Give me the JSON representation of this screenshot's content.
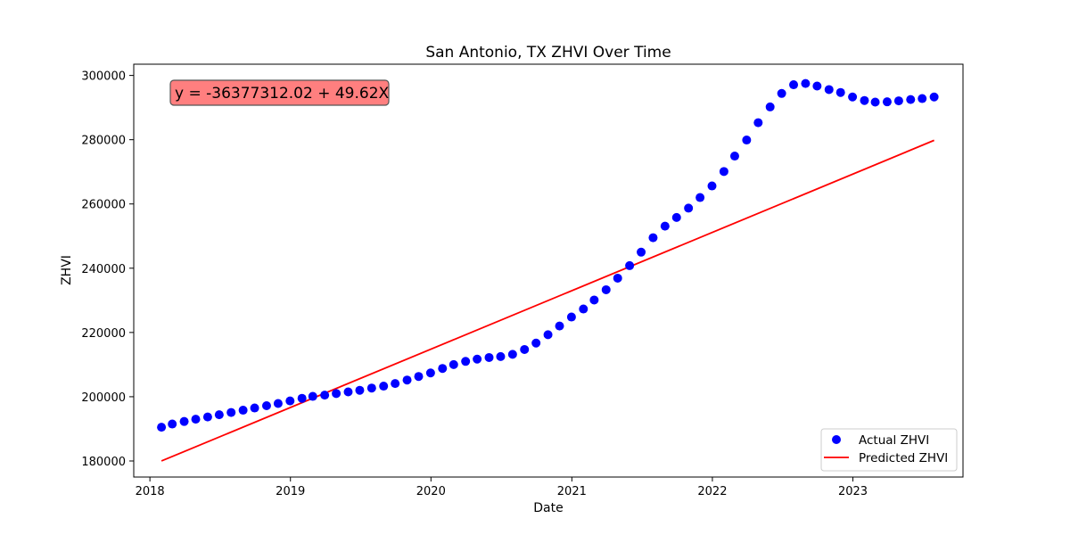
{
  "chart_data": {
    "type": "scatter",
    "title": "San Antonio, TX ZHVI Over Time",
    "xlabel": "Date",
    "ylabel": "ZHVI",
    "xlim": [
      "2017-11-20",
      "2023-10-14"
    ],
    "ylim": [
      175000,
      303500
    ],
    "x_ticks": [
      "2018",
      "2019",
      "2020",
      "2021",
      "2022",
      "2023"
    ],
    "y_ticks": [
      180000,
      200000,
      220000,
      240000,
      260000,
      280000,
      300000
    ],
    "grid": false,
    "legend_position": "lower right",
    "annotation": "y = -36377312.02 + 49.62X",
    "series": [
      {
        "name": "Actual ZHVI",
        "kind": "scatter",
        "color": "#0000ff",
        "points": [
          [
            "2018-01-31",
            190500
          ],
          [
            "2018-02-28",
            191500
          ],
          [
            "2018-03-31",
            192300
          ],
          [
            "2018-04-30",
            193000
          ],
          [
            "2018-05-31",
            193700
          ],
          [
            "2018-06-30",
            194400
          ],
          [
            "2018-07-31",
            195100
          ],
          [
            "2018-08-31",
            195800
          ],
          [
            "2018-09-30",
            196500
          ],
          [
            "2018-10-31",
            197200
          ],
          [
            "2018-11-30",
            197900
          ],
          [
            "2018-12-31",
            198700
          ],
          [
            "2019-01-31",
            199500
          ],
          [
            "2019-02-28",
            200100
          ],
          [
            "2019-03-31",
            200500
          ],
          [
            "2019-04-30",
            201000
          ],
          [
            "2019-05-31",
            201500
          ],
          [
            "2019-06-30",
            202000
          ],
          [
            "2019-07-31",
            202700
          ],
          [
            "2019-08-31",
            203300
          ],
          [
            "2019-09-30",
            204100
          ],
          [
            "2019-10-31",
            205200
          ],
          [
            "2019-11-30",
            206300
          ],
          [
            "2019-12-31",
            207400
          ],
          [
            "2020-01-31",
            208800
          ],
          [
            "2020-02-29",
            210000
          ],
          [
            "2020-03-31",
            211000
          ],
          [
            "2020-04-30",
            211700
          ],
          [
            "2020-05-31",
            212200
          ],
          [
            "2020-06-30",
            212500
          ],
          [
            "2020-07-31",
            213200
          ],
          [
            "2020-08-31",
            214700
          ],
          [
            "2020-09-30",
            216700
          ],
          [
            "2020-10-31",
            219300
          ],
          [
            "2020-11-30",
            222000
          ],
          [
            "2020-12-31",
            224800
          ],
          [
            "2021-01-31",
            227300
          ],
          [
            "2021-02-28",
            230100
          ],
          [
            "2021-03-31",
            233300
          ],
          [
            "2021-04-30",
            236900
          ],
          [
            "2021-05-31",
            240800
          ],
          [
            "2021-06-30",
            245000
          ],
          [
            "2021-07-31",
            249500
          ],
          [
            "2021-08-31",
            253100
          ],
          [
            "2021-09-30",
            255800
          ],
          [
            "2021-10-31",
            258700
          ],
          [
            "2021-11-30",
            262000
          ],
          [
            "2021-12-31",
            265600
          ],
          [
            "2022-01-31",
            270100
          ],
          [
            "2022-02-28",
            274900
          ],
          [
            "2022-03-31",
            279900
          ],
          [
            "2022-04-30",
            285300
          ],
          [
            "2022-05-31",
            290200
          ],
          [
            "2022-06-30",
            294400
          ],
          [
            "2022-07-31",
            297100
          ],
          [
            "2022-08-31",
            297500
          ],
          [
            "2022-09-30",
            296700
          ],
          [
            "2022-10-31",
            295600
          ],
          [
            "2022-11-30",
            294700
          ],
          [
            "2022-12-31",
            293300
          ],
          [
            "2023-01-31",
            292200
          ],
          [
            "2023-02-28",
            291700
          ],
          [
            "2023-03-31",
            291800
          ],
          [
            "2023-04-30",
            292100
          ],
          [
            "2023-05-31",
            292500
          ],
          [
            "2023-06-30",
            292800
          ],
          [
            "2023-07-31",
            293300
          ]
        ]
      },
      {
        "name": "Predicted ZHVI",
        "kind": "line",
        "color": "#ff0000",
        "points": [
          [
            "2018-01-31",
            180000
          ],
          [
            "2023-07-31",
            279800
          ]
        ]
      }
    ]
  }
}
